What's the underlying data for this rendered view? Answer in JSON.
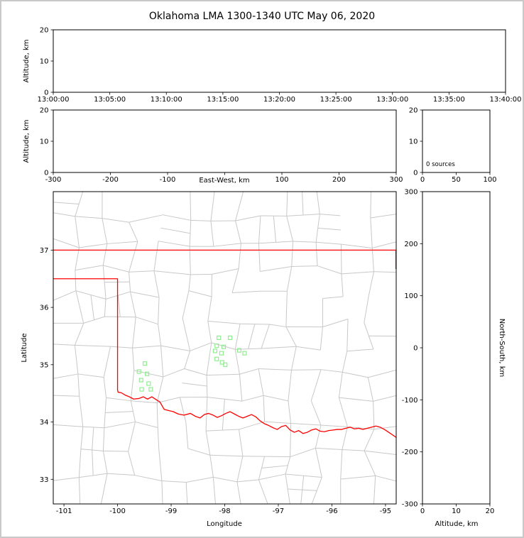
{
  "title": "Oklahoma LMA 1300-1340 UTC May 06, 2020",
  "panels": {
    "time_height": {
      "ylabel": "Altitude, km",
      "ylim": [
        0,
        20
      ],
      "yticks": [
        0,
        10,
        20
      ],
      "xtick_labels": [
        "13:00:00",
        "13:05:00",
        "13:10:00",
        "13:15:00",
        "13:20:00",
        "13:25:00",
        "13:30:00",
        "13:35:00",
        "13:40:00"
      ]
    },
    "ew_height": {
      "ylabel": "Altitude, km",
      "xlabel": "East-West, km",
      "xlim": [
        -300,
        300
      ],
      "xticks": [
        -300,
        -200,
        -100,
        0,
        100,
        200,
        300
      ],
      "ylim": [
        0,
        20
      ],
      "yticks": [
        0,
        10,
        20
      ]
    },
    "histogram": {
      "annotation": "0 sources",
      "xlim": [
        0,
        100
      ],
      "xticks": [
        0,
        50,
        100
      ],
      "ylim": [
        0,
        20
      ],
      "yticks": [
        0,
        10,
        20
      ]
    },
    "map": {
      "xlabel": "Longitude",
      "ylabel": "Latitude",
      "xlim": [
        -101.2,
        -94.8
      ],
      "ylim": [
        32.57,
        38.02
      ],
      "xticks": [
        -101,
        -100,
        -99,
        -98,
        -97,
        -96,
        -95
      ],
      "yticks": [
        33,
        34,
        35,
        36,
        37
      ]
    },
    "ns_height": {
      "xlabel": "Altitude, km",
      "ylabel_right": "North-South, km",
      "xlim": [
        0,
        20
      ],
      "xticks": [
        0,
        10,
        20
      ],
      "ylim": [
        -300,
        300
      ],
      "yticks": [
        -300,
        -200,
        -100,
        0,
        100,
        200,
        300
      ]
    }
  },
  "colors": {
    "state_border": "#ff0000",
    "county_lines": "#c8c8c8",
    "stations": "#90ee90",
    "frame": "#000000",
    "figure_border": "#c9c9c9"
  },
  "chart_data": {
    "type": "scatter",
    "title": "Oklahoma LMA 1300-1340 UTC May 06, 2020",
    "source_count": 0,
    "source_count_label": "0 sources",
    "lightning_sources": [],
    "panels": [
      "time-height",
      "east-west-height",
      "source-altitude-histogram",
      "plan-view-map",
      "north-south-height"
    ],
    "stations_lon_lat": [
      [
        -99.49,
        35.02
      ],
      [
        -99.6,
        34.88
      ],
      [
        -99.45,
        34.84
      ],
      [
        -99.56,
        34.73
      ],
      [
        -99.42,
        34.67
      ],
      [
        -99.55,
        34.57
      ],
      [
        -99.38,
        34.57
      ],
      [
        -98.11,
        35.47
      ],
      [
        -97.9,
        35.47
      ],
      [
        -98.15,
        35.33
      ],
      [
        -98.02,
        35.31
      ],
      [
        -98.18,
        35.24
      ],
      [
        -98.06,
        35.2
      ],
      [
        -97.73,
        35.25
      ],
      [
        -97.63,
        35.2
      ],
      [
        -98.15,
        35.1
      ],
      [
        -98.05,
        35.04
      ],
      [
        -97.99,
        35.0
      ]
    ],
    "map": {
      "xlim": [
        -101.2,
        -94.8
      ],
      "ylim": [
        32.57,
        38.02
      ],
      "oklahoma_border": {
        "north_border_lat": 37.0,
        "panhandle_south_lat": 36.5,
        "main_body_west_lon": -100.0,
        "west_border_meets_red_river_lat": 34.56,
        "east_edge_segment_lon_lat": [
          [
            -94.805,
            37.0
          ],
          [
            -94.805,
            36.67
          ]
        ],
        "red_river_lon_lat": [
          [
            -100.0,
            34.56
          ],
          [
            -99.99,
            34.52
          ],
          [
            -99.93,
            34.51
          ],
          [
            -99.86,
            34.47
          ],
          [
            -99.78,
            34.44
          ],
          [
            -99.7,
            34.4
          ],
          [
            -99.6,
            34.41
          ],
          [
            -99.52,
            34.44
          ],
          [
            -99.44,
            34.4
          ],
          [
            -99.36,
            34.44
          ],
          [
            -99.28,
            34.39
          ],
          [
            -99.21,
            34.35
          ],
          [
            -99.13,
            34.22
          ],
          [
            -99.05,
            34.2
          ],
          [
            -98.96,
            34.18
          ],
          [
            -98.87,
            34.14
          ],
          [
            -98.76,
            34.12
          ],
          [
            -98.64,
            34.15
          ],
          [
            -98.55,
            34.1
          ],
          [
            -98.46,
            34.07
          ],
          [
            -98.38,
            34.13
          ],
          [
            -98.3,
            34.15
          ],
          [
            -98.22,
            34.12
          ],
          [
            -98.14,
            34.08
          ],
          [
            -98.06,
            34.11
          ],
          [
            -97.98,
            34.15
          ],
          [
            -97.9,
            34.18
          ],
          [
            -97.82,
            34.14
          ],
          [
            -97.74,
            34.1
          ],
          [
            -97.66,
            34.07
          ],
          [
            -97.58,
            34.1
          ],
          [
            -97.5,
            34.13
          ],
          [
            -97.42,
            34.09
          ],
          [
            -97.34,
            34.02
          ],
          [
            -97.26,
            33.97
          ],
          [
            -97.18,
            33.94
          ],
          [
            -97.1,
            33.9
          ],
          [
            -97.02,
            33.87
          ],
          [
            -96.94,
            33.92
          ],
          [
            -96.86,
            33.94
          ],
          [
            -96.78,
            33.86
          ],
          [
            -96.7,
            33.82
          ],
          [
            -96.62,
            33.85
          ],
          [
            -96.54,
            33.8
          ],
          [
            -96.46,
            33.82
          ],
          [
            -96.38,
            33.86
          ],
          [
            -96.3,
            33.88
          ],
          [
            -96.22,
            33.84
          ],
          [
            -96.14,
            33.83
          ],
          [
            -96.06,
            33.85
          ],
          [
            -95.98,
            33.86
          ],
          [
            -95.9,
            33.87
          ],
          [
            -95.82,
            33.87
          ],
          [
            -95.74,
            33.89
          ],
          [
            -95.66,
            33.91
          ],
          [
            -95.58,
            33.88
          ],
          [
            -95.5,
            33.89
          ],
          [
            -95.42,
            33.87
          ],
          [
            -95.34,
            33.89
          ],
          [
            -95.26,
            33.91
          ],
          [
            -95.18,
            33.93
          ],
          [
            -95.1,
            33.91
          ],
          [
            -95.02,
            33.87
          ],
          [
            -94.94,
            33.82
          ],
          [
            -94.86,
            33.77
          ],
          [
            -94.8,
            33.73
          ]
        ]
      }
    }
  }
}
